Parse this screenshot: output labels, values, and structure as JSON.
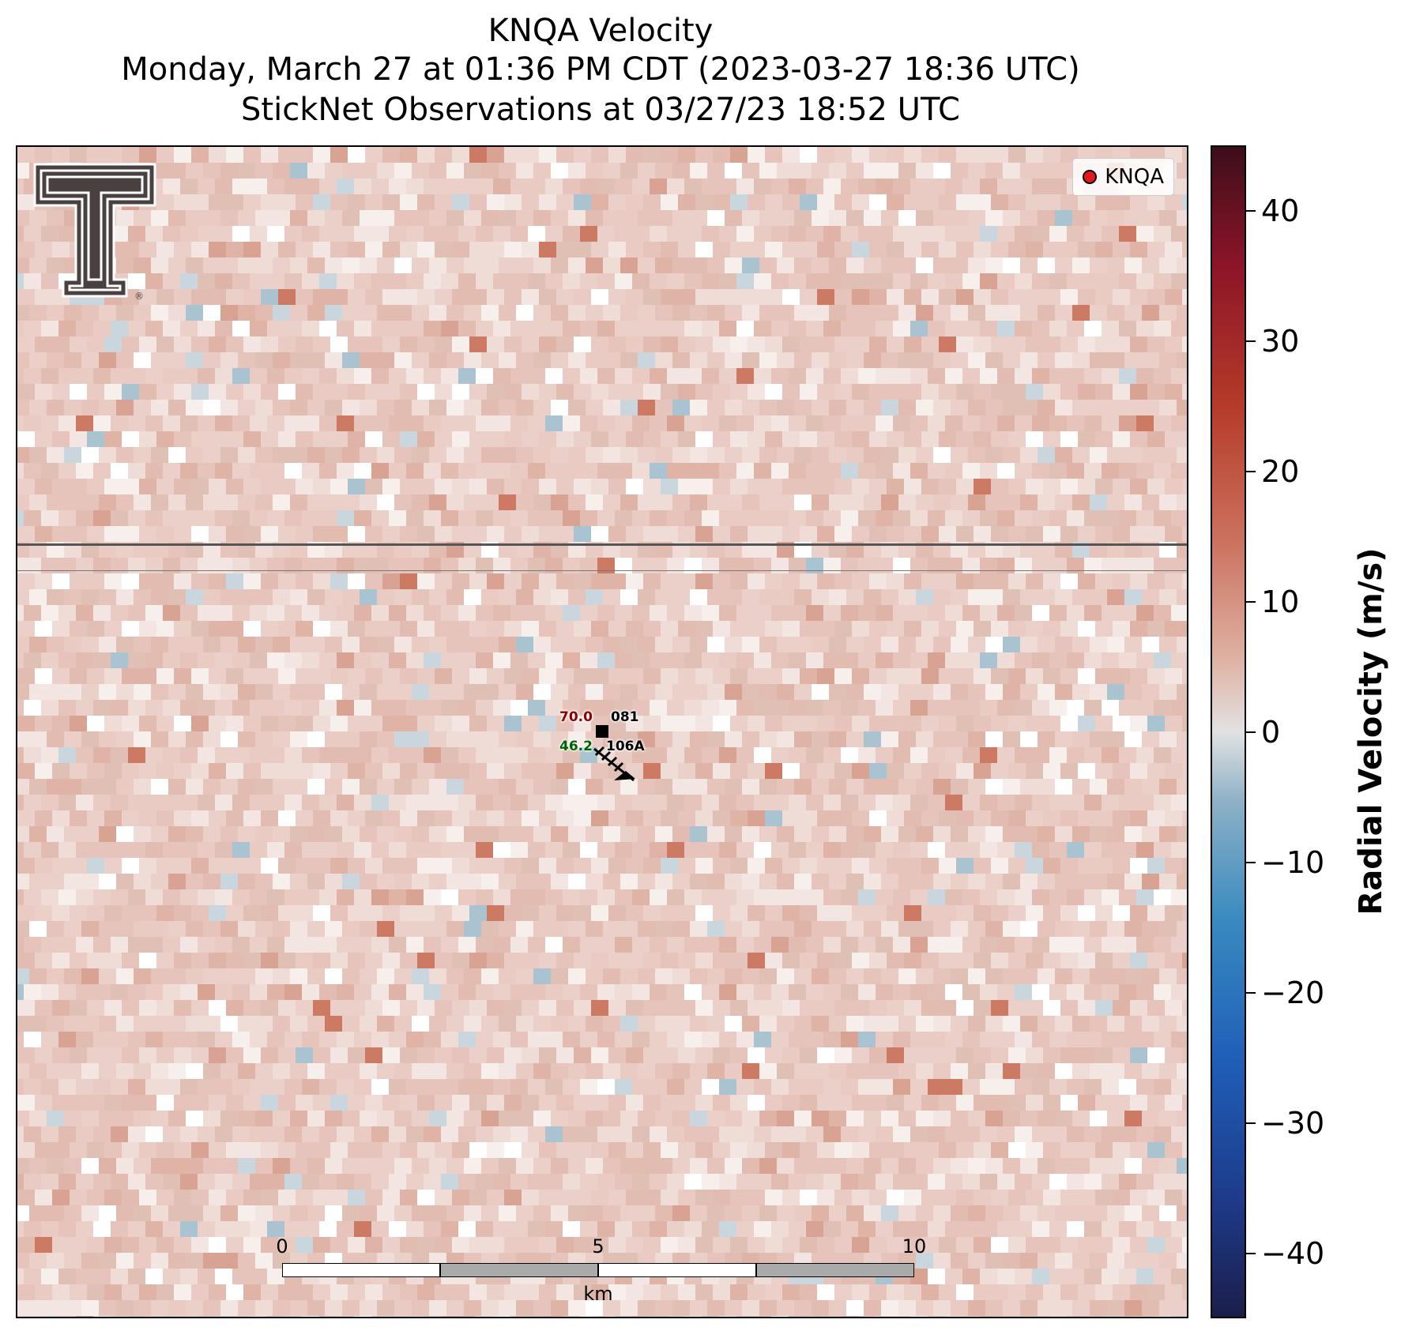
{
  "title": {
    "line1": "KNQA Velocity",
    "line2": "Monday, March 27 at 01:36 PM CDT (2023-03-27 18:36 UTC)",
    "line3": "StickNet Observations at 03/27/23 18:52 UTC"
  },
  "legend": {
    "label": "KNQA",
    "marker_color": "#e8161b"
  },
  "logo": {
    "name": "texas-tech-double-t-logo"
  },
  "station": {
    "temperature": "70.0",
    "dewpoint": "46.2",
    "id_top": "081",
    "id_bottom": "106A",
    "temperature_color": "#8b0000",
    "dewpoint_color": "#006400"
  },
  "scale_bar": {
    "ticks": [
      "0",
      "5",
      "10"
    ],
    "unit": "km"
  },
  "colorbar": {
    "title": "Radial Velocity (m/s)",
    "min": -45,
    "max": 45,
    "ticks": [
      "40",
      "30",
      "20",
      "10",
      "0",
      "−10",
      "−20",
      "−30",
      "−40"
    ],
    "tick_values": [
      40,
      30,
      20,
      10,
      0,
      -10,
      -20,
      -30,
      -40
    ],
    "colors": {
      "negative_strong": "#1b1e4a",
      "negative_mid": "#3a8ac0",
      "zero": "#e2e2e2",
      "positive_mid": "#cc7360",
      "positive_strong": "#3d0e1a"
    }
  }
}
